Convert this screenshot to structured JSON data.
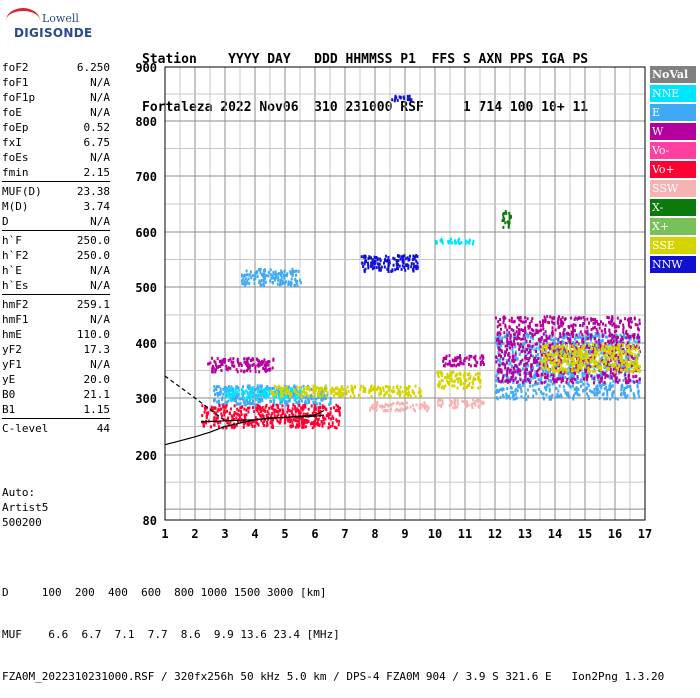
{
  "logo": {
    "line1": "Lowell",
    "line2": "DIGISONDE"
  },
  "header": {
    "line1": "Station    YYYY DAY   DDD HHMMSS P1  FFS S AXN PPS IGA PS",
    "line2": "Fortaleza 2022 Nov06  310 231000 RSF     1 714 100 10+ 11"
  },
  "params": [
    [
      {
        "k": "foF2",
        "v": "6.250"
      },
      {
        "k": "foF1",
        "v": "N/A"
      },
      {
        "k": "foF1p",
        "v": "N/A"
      },
      {
        "k": "foE",
        "v": "N/A"
      },
      {
        "k": "foEp",
        "v": "0.52"
      },
      {
        "k": "fxI",
        "v": "6.75"
      },
      {
        "k": "foEs",
        "v": "N/A"
      },
      {
        "k": "fmin",
        "v": "2.15"
      }
    ],
    [
      {
        "k": "MUF(D)",
        "v": "23.38"
      },
      {
        "k": "M(D)",
        "v": "3.74"
      },
      {
        "k": "D",
        "v": "N/A"
      }
    ],
    [
      {
        "k": "h`F",
        "v": "250.0"
      },
      {
        "k": "h`F2",
        "v": "250.0"
      },
      {
        "k": "h`E",
        "v": "N/A"
      },
      {
        "k": "h`Es",
        "v": "N/A"
      }
    ],
    [
      {
        "k": "hmF2",
        "v": "259.1"
      },
      {
        "k": "hmF1",
        "v": "N/A"
      },
      {
        "k": "hmE",
        "v": "110.0"
      },
      {
        "k": "yF2",
        "v": "17.3"
      },
      {
        "k": "yF1",
        "v": "N/A"
      },
      {
        "k": "yE",
        "v": "20.0"
      },
      {
        "k": "B0",
        "v": "21.1"
      },
      {
        "k": "B1",
        "v": "1.15"
      }
    ],
    [
      {
        "k": "C-level",
        "v": "44"
      }
    ]
  ],
  "auto": {
    "line1": "Auto:",
    "line2": "Artist5",
    "line3": "500200"
  },
  "legend": [
    {
      "label": "NoVal",
      "color": "#808080"
    },
    {
      "label": "NNE",
      "color": "#00e5ff"
    },
    {
      "label": "E",
      "color": "#3fa9f5"
    },
    {
      "label": "W",
      "color": "#b4009e"
    },
    {
      "label": "Vo-",
      "color": "#ff3fa0"
    },
    {
      "label": "Vo+",
      "color": "#ff0033"
    },
    {
      "label": "SSW",
      "color": "#f7b3b3"
    },
    {
      "label": "X-",
      "color": "#0a7a0a"
    },
    {
      "label": "X+",
      "color": "#78c05a"
    },
    {
      "label": "SSE",
      "color": "#d4d400"
    },
    {
      "label": "NNW",
      "color": "#1010d0"
    }
  ],
  "footer": {
    "line1": "D     100  200  400  600  800 1000 1500 3000 [km]",
    "line2": "MUF    6.6  6.7  7.1  7.7  8.6  9.9 13.6 23.4 [MHz]",
    "line3": "FZA0M_2022310231000.RSF / 320fx256h 50 kHz 5.0 km / DPS-4 FZA0M 904 / 3.9 S 321.6 E   Ion2Png 1.3.20"
  },
  "chart_data": {
    "type": "scatter",
    "title": "",
    "xlabel": "",
    "ylabel": "",
    "xlim": [
      1,
      17
    ],
    "ylim": [
      80,
      900
    ],
    "xticks": [
      1,
      2,
      3,
      4,
      5,
      6,
      7,
      8,
      9,
      10,
      11,
      12,
      13,
      14,
      15,
      16,
      17
    ],
    "yticks": [
      80,
      200,
      300,
      400,
      500,
      600,
      700,
      800,
      900
    ],
    "clusters": [
      {
        "series": "W",
        "x": [
          2.4,
          4.6
        ],
        "y": [
          350,
          375
        ]
      },
      {
        "series": "E",
        "x": [
          2.6,
          6.5
        ],
        "y": [
          290,
          325
        ]
      },
      {
        "series": "NNE",
        "x": [
          3.0,
          5.5
        ],
        "y": [
          300,
          320
        ]
      },
      {
        "series": "Vo+",
        "x": [
          2.2,
          6.8
        ],
        "y": [
          250,
          290
        ]
      },
      {
        "series": "SSE",
        "x": [
          4.5,
          9.5
        ],
        "y": [
          305,
          325
        ]
      },
      {
        "series": "E",
        "x": [
          3.5,
          5.5
        ],
        "y": [
          505,
          535
        ]
      },
      {
        "series": "NNW",
        "x": [
          7.5,
          9.4
        ],
        "y": [
          530,
          560
        ]
      },
      {
        "series": "SSW",
        "x": [
          7.8,
          9.8
        ],
        "y": [
          280,
          295
        ]
      },
      {
        "series": "SSW",
        "x": [
          10.0,
          11.6
        ],
        "y": [
          285,
          300
        ]
      },
      {
        "series": "SSE",
        "x": [
          10.0,
          11.5
        ],
        "y": [
          320,
          350
        ]
      },
      {
        "series": "W",
        "x": [
          10.2,
          11.6
        ],
        "y": [
          360,
          380
        ]
      },
      {
        "series": "E",
        "x": [
          12.0,
          16.8
        ],
        "y": [
          300,
          420
        ]
      },
      {
        "series": "W",
        "x": [
          12.0,
          16.8
        ],
        "y": [
          330,
          450
        ]
      },
      {
        "series": "SSE",
        "x": [
          13.5,
          16.8
        ],
        "y": [
          350,
          400
        ]
      },
      {
        "series": "NNE",
        "x": [
          10.0,
          11.3
        ],
        "y": [
          580,
          590
        ]
      },
      {
        "series": "X-",
        "x": [
          12.2,
          12.5
        ],
        "y": [
          610,
          640
        ]
      },
      {
        "series": "NNW",
        "x": [
          8.4,
          9.2
        ],
        "y": [
          840,
          850
        ]
      }
    ],
    "lines": [
      {
        "name": "",
        "x": [
          1,
          1.5,
          2,
          2.5,
          3,
          3.5,
          4,
          4.5,
          5,
          5.5,
          6,
          6.3
        ],
        "y": [
          218,
          225,
          232,
          240,
          250,
          256,
          262,
          265,
          266,
          267,
          268,
          270
        ]
      },
      {
        "name": "",
        "x": [
          1,
          1.5,
          2,
          2.5,
          3
        ],
        "y": [
          340,
          320,
          300,
          280,
          260
        ]
      },
      {
        "name": "",
        "x": [
          2.2,
          3,
          4,
          5,
          6,
          6.3
        ],
        "y": [
          258,
          260,
          262,
          266,
          270,
          278
        ]
      }
    ]
  }
}
